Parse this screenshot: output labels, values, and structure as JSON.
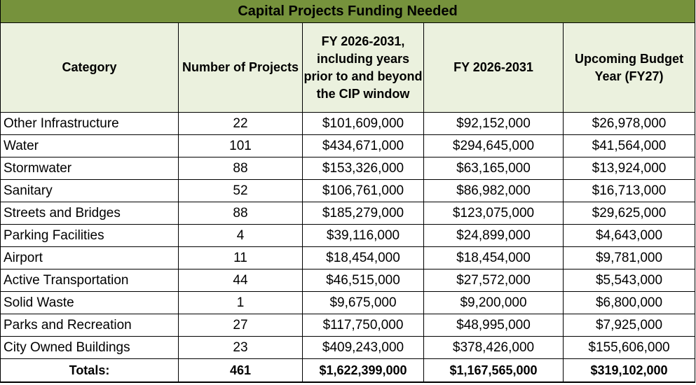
{
  "title": "Capital Projects Funding Needed",
  "headers": [
    "Category",
    "Number of Projects",
    "FY 2026-2031, including years prior to and beyond the CIP window",
    "FY 2026-2031",
    "Upcoming Budget Year (FY27)"
  ],
  "rows": [
    [
      "Other Infrastructure",
      "22",
      "$101,609,000",
      "$92,152,000",
      "$26,978,000"
    ],
    [
      "Water",
      "101",
      "$434,671,000",
      "$294,645,000",
      "$41,564,000"
    ],
    [
      "Stormwater",
      "88",
      "$153,326,000",
      "$63,165,000",
      "$13,924,000"
    ],
    [
      "Sanitary",
      "52",
      "$106,761,000",
      "$86,982,000",
      "$16,713,000"
    ],
    [
      "Streets and Bridges",
      "88",
      "$185,279,000",
      "$123,075,000",
      "$29,625,000"
    ],
    [
      "Parking Facilities",
      "4",
      "$39,116,000",
      "$24,899,000",
      "$4,643,000"
    ],
    [
      "Airport",
      "11",
      "$18,454,000",
      "$18,454,000",
      "$9,781,000"
    ],
    [
      "Active Transportation",
      "44",
      "$46,515,000",
      "$27,572,000",
      "$5,543,000"
    ],
    [
      "Solid Waste",
      "1",
      "$9,675,000",
      "$9,200,000",
      "$6,800,000"
    ],
    [
      "Parks and Recreation",
      "27",
      "$117,750,000",
      "$48,995,000",
      "$7,925,000"
    ],
    [
      "City Owned Buildings",
      "23",
      "$409,243,000",
      "$378,426,000",
      "$155,606,000"
    ]
  ],
  "totals": [
    "Totals:",
    "461",
    "$1,622,399,000",
    "$1,167,565,000",
    "$319,102,000"
  ],
  "colors": {
    "title_bg": "#76923c",
    "header_bg": "#ebf1de",
    "border": "#000000"
  }
}
